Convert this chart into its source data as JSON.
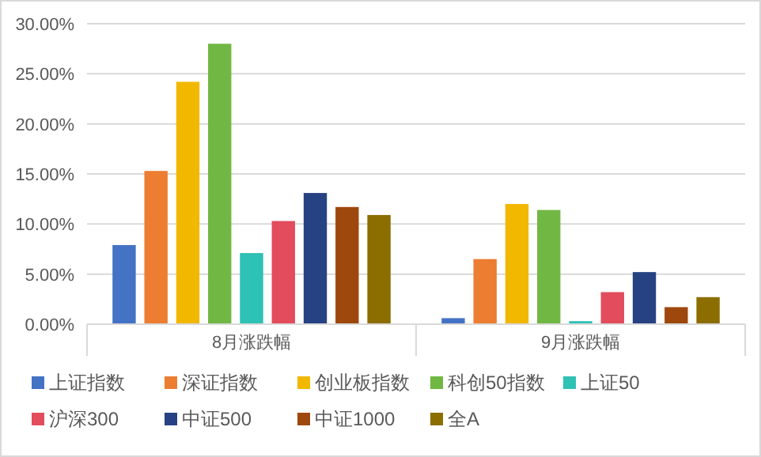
{
  "chart_data": {
    "type": "bar",
    "categories": [
      "8月涨跌幅",
      "9月涨跌幅"
    ],
    "series": [
      {
        "name": "上证指数",
        "color": "#4472c4",
        "values": [
          7.9,
          0.6
        ]
      },
      {
        "name": "深证指数",
        "color": "#ed7d31",
        "values": [
          15.3,
          6.5
        ]
      },
      {
        "name": "创业板指数",
        "color": "#f2b800",
        "values": [
          24.2,
          12.0
        ]
      },
      {
        "name": "科创50指数",
        "color": "#70b843",
        "values": [
          28.0,
          11.4
        ]
      },
      {
        "name": "上证50",
        "color": "#2ec1b5",
        "values": [
          7.1,
          0.3
        ]
      },
      {
        "name": "沪深300",
        "color": "#e24c5c",
        "values": [
          10.3,
          3.2
        ]
      },
      {
        "name": "中证500",
        "color": "#264282",
        "values": [
          13.1,
          5.2
        ]
      },
      {
        "name": "中证1000",
        "color": "#9e480e",
        "values": [
          11.7,
          1.7
        ]
      },
      {
        "name": "全A",
        "color": "#8c6d00",
        "values": [
          10.9,
          2.7
        ]
      }
    ],
    "ylim": [
      0,
      30
    ],
    "yticks": [
      {
        "value": 0,
        "label": "0.00%"
      },
      {
        "value": 5,
        "label": "5.00%"
      },
      {
        "value": 10,
        "label": "10.00%"
      },
      {
        "value": 15,
        "label": "15.00%"
      },
      {
        "value": 20,
        "label": "20.00%"
      },
      {
        "value": 25,
        "label": "25.00%"
      },
      {
        "value": 30,
        "label": "30.00%"
      }
    ],
    "grid": "y",
    "legend": "bottom"
  }
}
